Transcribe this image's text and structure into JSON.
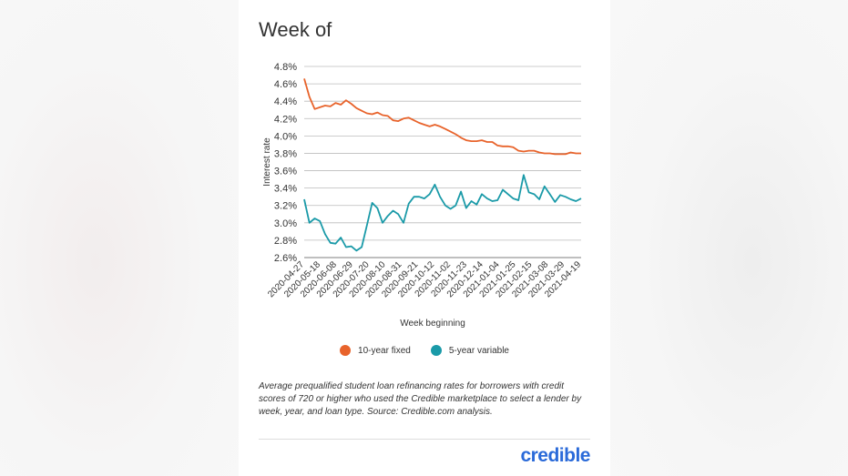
{
  "page": {
    "title": "Week of",
    "caption": "Average prequalified student loan refinancing rates for borrowers with credit scores of 720 or higher who used the Credible marketplace to select a lender by week, year, and loan type. Source: Credible.com analysis.",
    "logo_text": "credible"
  },
  "colors": {
    "fixed": "#e8632b",
    "variable": "#1a9aa8"
  },
  "chart_data": {
    "type": "line",
    "title": "Week of",
    "xlabel": "Week beginning",
    "ylabel": "Interest rate",
    "ylim": [
      2.6,
      4.8
    ],
    "y_ticks": [
      "4.8%",
      "4.6%",
      "4.4%",
      "4.2%",
      "4.0%",
      "3.8%",
      "3.6%",
      "3.4%",
      "3.2%",
      "3.0%",
      "2.8%",
      "2.6%"
    ],
    "y_tick_values": [
      4.8,
      4.6,
      4.4,
      4.2,
      4.0,
      3.8,
      3.6,
      3.4,
      3.2,
      3.0,
      2.8,
      2.6
    ],
    "x_tick_labels": [
      "2020-04-27",
      "2020-05-18",
      "2020-06-08",
      "2020-06-29",
      "2020-07-20",
      "2020-08-10",
      "2020-08-31",
      "2020-09-21",
      "2020-10-12",
      "2020-11-02",
      "2020-11-23",
      "2020-12-14",
      "2021-01-04",
      "2021-01-25",
      "2021-02-15",
      "2021-03-08",
      "2021-03-29",
      "2021-04-19"
    ],
    "grid": "horizontal",
    "legend_position": "bottom",
    "series": [
      {
        "name": "10-year fixed",
        "values": [
          4.66,
          4.45,
          4.31,
          4.33,
          4.35,
          4.34,
          4.38,
          4.36,
          4.41,
          4.37,
          4.32,
          4.29,
          4.26,
          4.25,
          4.27,
          4.24,
          4.23,
          4.18,
          4.17,
          4.2,
          4.21,
          4.18,
          4.15,
          4.13,
          4.11,
          4.13,
          4.11,
          4.08,
          4.05,
          4.02,
          3.98,
          3.95,
          3.94,
          3.94,
          3.95,
          3.93,
          3.93,
          3.89,
          3.88,
          3.88,
          3.87,
          3.83,
          3.82,
          3.83,
          3.83,
          3.81,
          3.8,
          3.8,
          3.79,
          3.79,
          3.79,
          3.81,
          3.8,
          3.8
        ]
      },
      {
        "name": "5-year variable",
        "values": [
          3.27,
          3.0,
          3.05,
          3.02,
          2.87,
          2.77,
          2.76,
          2.83,
          2.72,
          2.73,
          2.68,
          2.72,
          2.97,
          3.23,
          3.17,
          3.0,
          3.08,
          3.14,
          3.1,
          3.0,
          3.22,
          3.3,
          3.3,
          3.28,
          3.33,
          3.44,
          3.3,
          3.2,
          3.16,
          3.2,
          3.36,
          3.17,
          3.25,
          3.21,
          3.33,
          3.28,
          3.25,
          3.26,
          3.38,
          3.33,
          3.28,
          3.26,
          3.55,
          3.35,
          3.33,
          3.27,
          3.42,
          3.33,
          3.24,
          3.32,
          3.3,
          3.27,
          3.25,
          3.28
        ]
      }
    ]
  }
}
